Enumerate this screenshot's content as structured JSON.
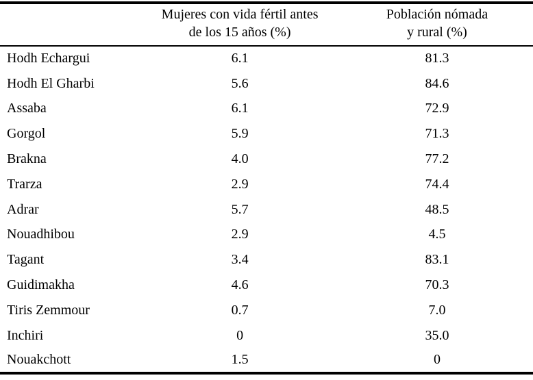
{
  "colors": {
    "background": "#ffffff",
    "text": "#000000",
    "rules": "#000000"
  },
  "table": {
    "header": {
      "region_label": "",
      "fertility_line1": "Mujeres con vida fértil antes",
      "fertility_line2": "de los 15 años (%)",
      "nomad_line1": "Población nómada",
      "nomad_line2": "y rural (%)"
    },
    "rows": [
      {
        "region": "Hodh Echargui",
        "fertility": "6.1",
        "nomad": "81.3"
      },
      {
        "region": "Hodh El Gharbi",
        "fertility": "5.6",
        "nomad": "84.6"
      },
      {
        "region": "Assaba",
        "fertility": "6.1",
        "nomad": "72.9"
      },
      {
        "region": "Gorgol",
        "fertility": "5.9",
        "nomad": "71.3"
      },
      {
        "region": "Brakna",
        "fertility": "4.0",
        "nomad": "77.2"
      },
      {
        "region": "Trarza",
        "fertility": "2.9",
        "nomad": "74.4"
      },
      {
        "region": "Adrar",
        "fertility": "5.7",
        "nomad": "48.5"
      },
      {
        "region": "Nouadhibou",
        "fertility": "2.9",
        "nomad": "4.5"
      },
      {
        "region": "Tagant",
        "fertility": "3.4",
        "nomad": "83.1"
      },
      {
        "region": "Guidimakha",
        "fertility": "4.6",
        "nomad": "70.3"
      },
      {
        "region": "Tiris Zemmour",
        "fertility": "0.7",
        "nomad": "7.0"
      },
      {
        "region": "Inchiri",
        "fertility": "0",
        "nomad": "35.0"
      },
      {
        "region": "Nouakchott",
        "fertility": "1.5",
        "nomad": "0"
      }
    ]
  }
}
